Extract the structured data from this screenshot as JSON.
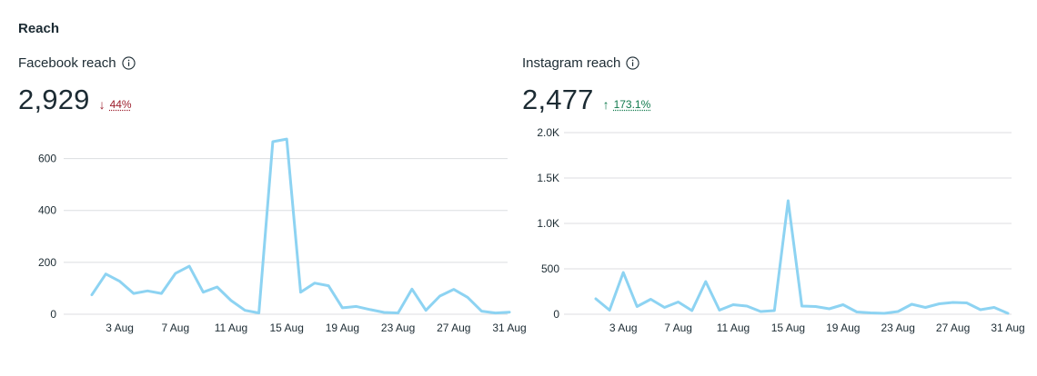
{
  "section": {
    "title": "Reach"
  },
  "facebook": {
    "label": "Facebook reach",
    "value": "2,929",
    "delta": {
      "direction": "down",
      "text": "44%",
      "color": "#9c1d2b"
    },
    "info_icon": "info-icon"
  },
  "instagram": {
    "label": "Instagram reach",
    "value": "2,477",
    "delta": {
      "direction": "up",
      "text": "173.1%",
      "color": "#117a4d"
    },
    "info_icon": "info-icon"
  },
  "colors": {
    "line": "#8dd3f2",
    "grid": "#dcdee1"
  },
  "chart_data": [
    {
      "type": "line",
      "title": "Facebook reach",
      "xlabel": "",
      "ylabel": "",
      "x": [
        "1 Aug",
        "2 Aug",
        "3 Aug",
        "4 Aug",
        "5 Aug",
        "6 Aug",
        "7 Aug",
        "8 Aug",
        "9 Aug",
        "10 Aug",
        "11 Aug",
        "12 Aug",
        "13 Aug",
        "14 Aug",
        "15 Aug",
        "16 Aug",
        "17 Aug",
        "18 Aug",
        "19 Aug",
        "20 Aug",
        "21 Aug",
        "22 Aug",
        "23 Aug",
        "24 Aug",
        "25 Aug",
        "26 Aug",
        "27 Aug",
        "28 Aug",
        "29 Aug",
        "30 Aug",
        "31 Aug"
      ],
      "series": [
        {
          "values": [
            75,
            155,
            127,
            80,
            90,
            80,
            157,
            185,
            85,
            105,
            53,
            15,
            5,
            665,
            675,
            85,
            120,
            110,
            25,
            30,
            18,
            7,
            5,
            97,
            15,
            70,
            96,
            65,
            12,
            5,
            8
          ]
        }
      ],
      "x_ticks": [
        "3 Aug",
        "7 Aug",
        "11 Aug",
        "15 Aug",
        "19 Aug",
        "23 Aug",
        "27 Aug",
        "31 Aug"
      ],
      "y_ticks": [
        0,
        200,
        400,
        600
      ],
      "y_tick_labels": [
        "0",
        "200",
        "400",
        "600"
      ],
      "ylim": [
        0,
        700
      ],
      "grid": true,
      "legend": "none"
    },
    {
      "type": "line",
      "title": "Instagram reach",
      "xlabel": "",
      "ylabel": "",
      "x": [
        "1 Aug",
        "2 Aug",
        "3 Aug",
        "4 Aug",
        "5 Aug",
        "6 Aug",
        "7 Aug",
        "8 Aug",
        "9 Aug",
        "10 Aug",
        "11 Aug",
        "12 Aug",
        "13 Aug",
        "14 Aug",
        "15 Aug",
        "16 Aug",
        "17 Aug",
        "18 Aug",
        "19 Aug",
        "20 Aug",
        "21 Aug",
        "22 Aug",
        "23 Aug",
        "24 Aug",
        "25 Aug",
        "26 Aug",
        "27 Aug",
        "28 Aug",
        "29 Aug",
        "30 Aug",
        "31 Aug"
      ],
      "series": [
        {
          "values": [
            170,
            45,
            460,
            85,
            165,
            75,
            135,
            40,
            360,
            45,
            105,
            90,
            30,
            40,
            1250,
            90,
            85,
            60,
            105,
            25,
            15,
            10,
            30,
            110,
            75,
            115,
            130,
            125,
            50,
            75,
            10
          ]
        }
      ],
      "x_ticks": [
        "3 Aug",
        "7 Aug",
        "11 Aug",
        "15 Aug",
        "19 Aug",
        "23 Aug",
        "27 Aug",
        "31 Aug"
      ],
      "y_ticks": [
        0,
        500,
        1000,
        1500,
        2000
      ],
      "y_tick_labels": [
        "0",
        "500",
        "1.0K",
        "1.5K",
        "2.0K"
      ],
      "ylim": [
        0,
        2000
      ],
      "grid": true,
      "legend": "none"
    }
  ]
}
